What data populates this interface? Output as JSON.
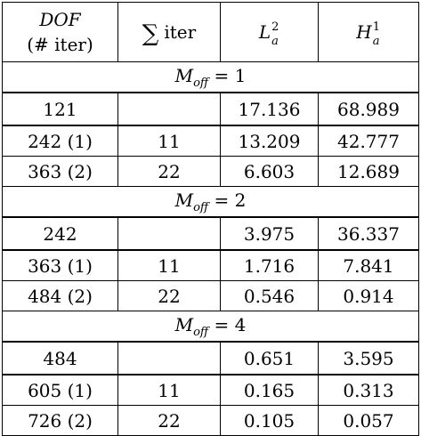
{
  "header": {
    "dof_label": "DOF",
    "iter_count_label": "(# iter)",
    "sum_symbol": "∑",
    "sum_iter_label": "iter",
    "l2": {
      "base": "L",
      "sup": "2",
      "sub": "a"
    },
    "h1": {
      "base": "H",
      "sup": "1",
      "sub": "a"
    }
  },
  "sections": [
    {
      "title": {
        "base": "M",
        "sub": "off",
        "rest": " = 1"
      },
      "rows": [
        {
          "dof": "121",
          "sum_iter": "",
          "l2": "17.136",
          "h1": "68.989"
        },
        {
          "dof": "242 (1)",
          "sum_iter": "11",
          "l2": "13.209",
          "h1": "42.777"
        },
        {
          "dof": "363 (2)",
          "sum_iter": "22",
          "l2": "6.603",
          "h1": "12.689"
        }
      ]
    },
    {
      "title": {
        "base": "M",
        "sub": "off",
        "rest": " = 2"
      },
      "rows": [
        {
          "dof": "242",
          "sum_iter": "",
          "l2": "3.975",
          "h1": "36.337"
        },
        {
          "dof": "363 (1)",
          "sum_iter": "11",
          "l2": "1.716",
          "h1": "7.841"
        },
        {
          "dof": "484 (2)",
          "sum_iter": "22",
          "l2": "0.546",
          "h1": "0.914"
        }
      ]
    },
    {
      "title": {
        "base": "M",
        "sub": "off",
        "rest": " = 4"
      },
      "rows": [
        {
          "dof": "484",
          "sum_iter": "",
          "l2": "0.651",
          "h1": "3.595"
        },
        {
          "dof": "605 (1)",
          "sum_iter": "11",
          "l2": "0.165",
          "h1": "0.313"
        },
        {
          "dof": "726 (2)",
          "sum_iter": "22",
          "l2": "0.105",
          "h1": "0.057"
        }
      ]
    }
  ]
}
